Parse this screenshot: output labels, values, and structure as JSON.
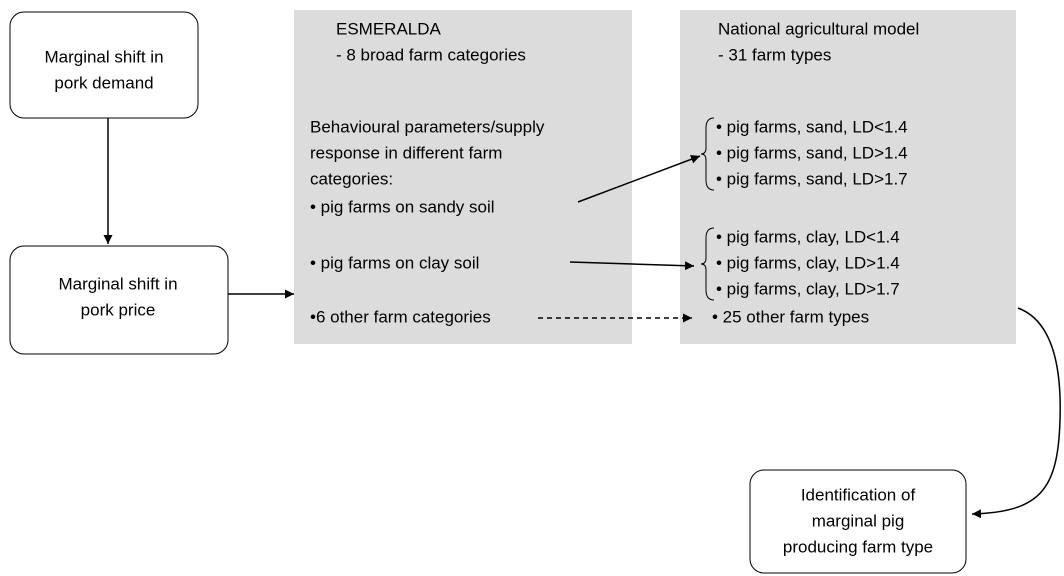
{
  "demand_box": {
    "lines": [
      "Marginal shift in",
      "pork demand"
    ]
  },
  "price_box": {
    "lines": [
      "Marginal shift in",
      "pork price"
    ]
  },
  "esmeralda": {
    "title": "ESMERALDA",
    "subtitle": "- 8 broad farm categories",
    "description": [
      "Behavioural parameters/supply",
      "response in different farm",
      "categories:"
    ],
    "items": [
      "• pig farms on sandy soil",
      "• pig farms on clay soil",
      "•6 other farm categories"
    ]
  },
  "national_model": {
    "title": "National agricultural model",
    "subtitle": "- 31 farm types",
    "sand_types": [
      "• pig farms, sand, LD<1.4",
      "• pig farms, sand, LD>1.4",
      "• pig farms, sand, LD>1.7"
    ],
    "clay_types": [
      "• pig farms, clay, LD<1.4",
      "• pig farms, clay, LD>1.4",
      "• pig farms, clay, LD>1.7"
    ],
    "other_types": "•  25 other farm types"
  },
  "result_box": {
    "lines": [
      "Identification of",
      "marginal pig",
      "producing farm type"
    ]
  }
}
